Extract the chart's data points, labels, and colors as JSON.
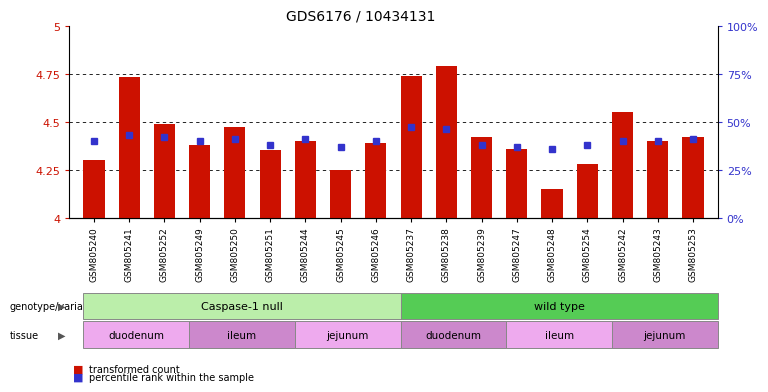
{
  "title": "GDS6176 / 10434131",
  "samples": [
    "GSM805240",
    "GSM805241",
    "GSM805252",
    "GSM805249",
    "GSM805250",
    "GSM805251",
    "GSM805244",
    "GSM805245",
    "GSM805246",
    "GSM805237",
    "GSM805238",
    "GSM805239",
    "GSM805247",
    "GSM805248",
    "GSM805254",
    "GSM805242",
    "GSM805243",
    "GSM805253"
  ],
  "bar_values": [
    4.3,
    4.73,
    4.49,
    4.38,
    4.47,
    4.35,
    4.4,
    4.25,
    4.39,
    4.74,
    4.79,
    4.42,
    4.36,
    4.15,
    4.28,
    4.55,
    4.4,
    4.42
  ],
  "blue_values": [
    4.4,
    4.43,
    4.42,
    4.4,
    4.41,
    4.38,
    4.41,
    4.37,
    4.4,
    4.47,
    4.46,
    4.38,
    4.37,
    4.36,
    4.38,
    4.4,
    4.4,
    4.41
  ],
  "ymin": 4.0,
  "ymax": 5.0,
  "yticks_left": [
    4.0,
    4.25,
    4.5,
    4.75,
    5.0
  ],
  "ytick_labels_left": [
    "4",
    "4.25",
    "4.5",
    "4.75",
    "5"
  ],
  "right_yticks": [
    0,
    25,
    50,
    75,
    100
  ],
  "right_ytick_labels": [
    "0%",
    "25%",
    "50%",
    "75%",
    "100%"
  ],
  "bar_color": "#cc1100",
  "blue_color": "#3333cc",
  "background_color": "#ffffff",
  "genotype_groups": [
    {
      "label": "Caspase-1 null",
      "start": 0,
      "end": 9,
      "color": "#bbeeaa"
    },
    {
      "label": "wild type",
      "start": 9,
      "end": 18,
      "color": "#55cc55"
    }
  ],
  "tissue_groups": [
    {
      "label": "duodenum",
      "start": 0,
      "end": 3,
      "color": "#eeaaee"
    },
    {
      "label": "ileum",
      "start": 3,
      "end": 6,
      "color": "#cc88cc"
    },
    {
      "label": "jejunum",
      "start": 6,
      "end": 9,
      "color": "#eeaaee"
    },
    {
      "label": "duodenum",
      "start": 9,
      "end": 12,
      "color": "#cc88cc"
    },
    {
      "label": "ileum",
      "start": 12,
      "end": 15,
      "color": "#eeaaee"
    },
    {
      "label": "jejunum",
      "start": 15,
      "end": 18,
      "color": "#cc88cc"
    }
  ],
  "legend_items": [
    {
      "label": "transformed count",
      "color": "#cc1100"
    },
    {
      "label": "percentile rank within the sample",
      "color": "#3333cc"
    }
  ],
  "bar_width": 0.6
}
